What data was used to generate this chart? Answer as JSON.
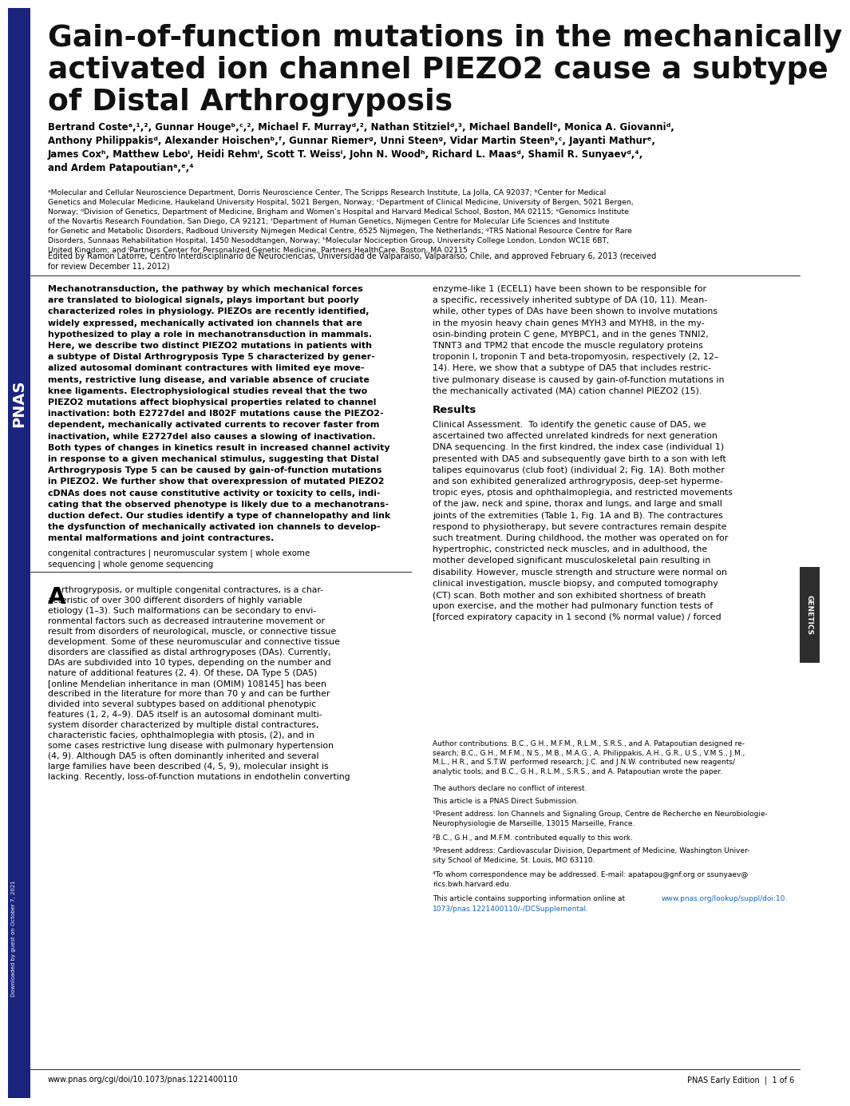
{
  "title_line1": "Gain-of-function mutations in the mechanically",
  "title_line2": "activated ion channel PIEZO2 cause a subtype",
  "title_line3": "of Distal Arthrogryposis",
  "affiliations": "ᵃMolecular and Cellular Neuroscience Department, Dorris Neuroscience Center, The Scripps Research Institute, La Jolla, CA 92037; ᵇCenter for Medical\nGenetics and Molecular Medicine, Haukeland University Hospital, 5021 Bergen, Norway; ᶜDepartment of Clinical Medicine, University of Bergen, 5021 Bergen,\nNorway; ᵈDivision of Genetics, Department of Medicine, Brigham and Women’s Hospital and Harvard Medical School, Boston, MA 02115; ᵉGenomics Institute\nof the Novartis Research Foundation, San Diego, CA 92121; ᶠDepartment of Human Genetics, Nijmegen Centre for Molecular Life Sciences and Institute\nfor Genetic and Metabolic Disorders, Radboud University Nijmegen Medical Centre, 6525 Nijmegen, The Netherlands; ᵍTRS National Resource Centre for Rare\nDisorders, Sunnaas Rehabilitation Hospital, 1450 Nesoddtangen, Norway; ʰMolecular Nociception Group, University College London, London WC1E 6BT,\nUnited Kingdom; and ⁱPartners Center for Personalized Genetic Medicine, Partners HealthCare, Boston, MA 02115",
  "edited_by": "Edited by Ramon Latorre, Centro Interdisciplinario de Neurociencias, Universidad de Valparaíso, Valparaíso, Chile, and approved February 6, 2013 (received\nfor review December 11, 2012)",
  "abstract_left": "Mechanotransduction, the pathway by which mechanical forces\nare translated to biological signals, plays important but poorly\ncharacterized roles in physiology. PIEZOs are recently identified,\nwidely expressed, mechanically activated ion channels that are\nhypothesized to play a role in mechanotransduction in mammals.\nHere, we describe two distinct PIEZO2 mutations in patients with\na subtype of Distal Arthrogryposis Type 5 characterized by gener-\nalized autosomal dominant contractures with limited eye move-\nments, restrictive lung disease, and variable absence of cruciate\nknee ligaments. Electrophysiological studies reveal that the two\nPIEZO2 mutations affect biophysical properties related to channel\ninactivation: both E2727del and I802F mutations cause the PIEZO2-\ndependent, mechanically activated currents to recover faster from\ninactivation, while E2727del also causes a slowing of inactivation.\nBoth types of changes in kinetics result in increased channel activity\nin response to a given mechanical stimulus, suggesting that Distal\nArthrogryposis Type 5 can be caused by gain-of-function mutations\nin PIEZO2. We further show that overexpression of mutated PIEZO2\ncDNAs does not cause constitutive activity or toxicity to cells, indi-\ncating that the observed phenotype is likely due to a mechanotrans-\nduction defect. Our studies identify a type of channelopathy and link\nthe dysfunction of mechanically activated ion channels to develop-\nmental malformations and joint contractures.",
  "keywords": "congenital contractures | neuromuscular system | whole exome\nsequencing | whole genome sequencing",
  "intro_left": "Arthrogryposis, or multiple congenital contractures, is a char-\nacteristic of over 300 different disorders of highly variable\netiology (1–3). Such malformations can be secondary to envi-\nronmental factors such as decreased intrauterine movement or\nresult from disorders of neurological, muscle, or connective tissue\ndevelopment. Some of these neuromuscular and connective tissue\ndisorders are classified as distal arthrogryposes (DAs). Currently,\nDAs are subdivided into 10 types, depending on the number and\nnature of additional features (2, 4). Of these, DA Type 5 (DA5)\n[online Mendelian inheritance in man (OMIM) 108145] has been\ndescribed in the literature for more than 70 y and can be further\ndivided into several subtypes based on additional phenotypic\nfeatures (1, 2, 4–9). DA5 itself is an autosomal dominant multi-\nsystem disorder characterized by multiple distal contractures,\ncharacteristic facies, ophthalmoplegia with ptosis, (2), and in\nsome cases restrictive lung disease with pulmonary hypertension\n(4, 9). Although DA5 is often dominantly inherited and several\nlarge families have been described (4, 5, 9), molecular insight is\nlacking. Recently, loss-of-function mutations in endothelin converting",
  "enzyme_lines": [
    "enzyme-like 1 (ECEL1) have been shown to be responsible for",
    "a specific, recessively inherited subtype of DA (10, 11). Mean-",
    "while, other types of DAs have been shown to involve mutations",
    "in the myosin heavy chain genes MYH3 and MYH8, in the my-",
    "osin-binding protein C gene, MYBPC1, and in the genes TNNI2,",
    "TNNT3 and TPM2 that encode the muscle regulatory proteins",
    "troponin I, troponin T and beta-tropomyosin, respectively (2, 12–",
    "14). Here, we show that a subtype of DA5 that includes restric-",
    "tive pulmonary disease is caused by gain-of-function mutations in",
    "the mechanically activated (MA) cation channel PIEZO2 (15)."
  ],
  "clinical_text": "Clinical Assessment.  To identify the genetic cause of DA5, we\nascertained two affected unrelated kindreds for next generation\nDNA sequencing. In the first kindred, the index case (individual 1)\npresented with DA5 and subsequently gave birth to a son with left\ntalipes equinovarus (club foot) (individual 2; Fig. 1A). Both mother\nand son exhibited generalized arthrogryposis, deep-set hyperme-\ntropic eyes, ptosis and ophthalmoplegia, and restricted movements\nof the jaw, neck and spine, thorax and lungs, and large and small\njoints of the extremities (Table 1, Fig. 1A and B). The contractures\nrespond to physiotherapy, but severe contractures remain despite\nsuch treatment. During childhood, the mother was operated on for\nhypertrophic, constricted neck muscles, and in adulthood, the\nmother developed significant musculoskeletal pain resulting in\ndisability. However, muscle strength and structure were normal on\nclinical investigation, muscle biopsy, and computed tomography\n(CT) scan. Both mother and son exhibited shortness of breath\nupon exercise, and the mother had pulmonary function tests of\n[forced expiratory capacity in 1 second (% normal value) / forced",
  "author_contributions": "Author contributions: B.C., G.H., M.F.M., R.L.M., S.R.S., and A. Patapoutian designed re-\nsearch; B.C., G.H., M.F.M., N.S., M.B., M.A.G., A. Philippakis, A.H., G.R., U.S., V.M.S., J.M.,\nM.L., H.R., and S.T.W. performed research; J.C. and J.N.W. contributed new reagents/\nanalytic tools; and B.C., G.H., R.L.M., S.R.S., and A. Patapoutian wrote the paper.",
  "conflict": "The authors declare no conflict of interest.",
  "pnas_direct": "This article is a PNAS Direct Submission.",
  "present1": "¹Present address: Ion Channels and Signaling Group, Centre de Recherche en Neurobiologie-\nNeurophysiologie de Marseille, 13015 Marseille, France.",
  "present2": "²B.C., G.H., and M.F.M. contributed equally to this work.",
  "present3": "³Present address: Cardiovascular Division, Department of Medicine, Washington Univer-\nsity School of Medicine, St. Louis, MO 63110.",
  "present4": "⁴To whom correspondence may be addressed. E-mail: apatapou@gnf.org or ssunyaev@\nrics.bwh.harvard.edu.",
  "supplemental_prefix": "This article contains supporting information online at ",
  "supplemental_url1": "www.pnas.org/lookup/suppl/doi:10.",
  "supplemental_url2": "1073/pnas.1221400110/-/DCSupplemental.",
  "footer_left": "www.pnas.org/cgi/doi/10.1073/pnas.1221400110",
  "footer_right": "PNAS Early Edition  |  1 of 6",
  "genetics_label": "GENETICS",
  "pnas_sidebar": "PNAS",
  "downloaded_text": "Downloaded by guest on October 7, 2021",
  "bg_color": "#ffffff",
  "sidebar_color": "#1a237e",
  "genetics_bg": "#2d2d2d",
  "text_color": "#000000",
  "link_color": "#1565C0"
}
